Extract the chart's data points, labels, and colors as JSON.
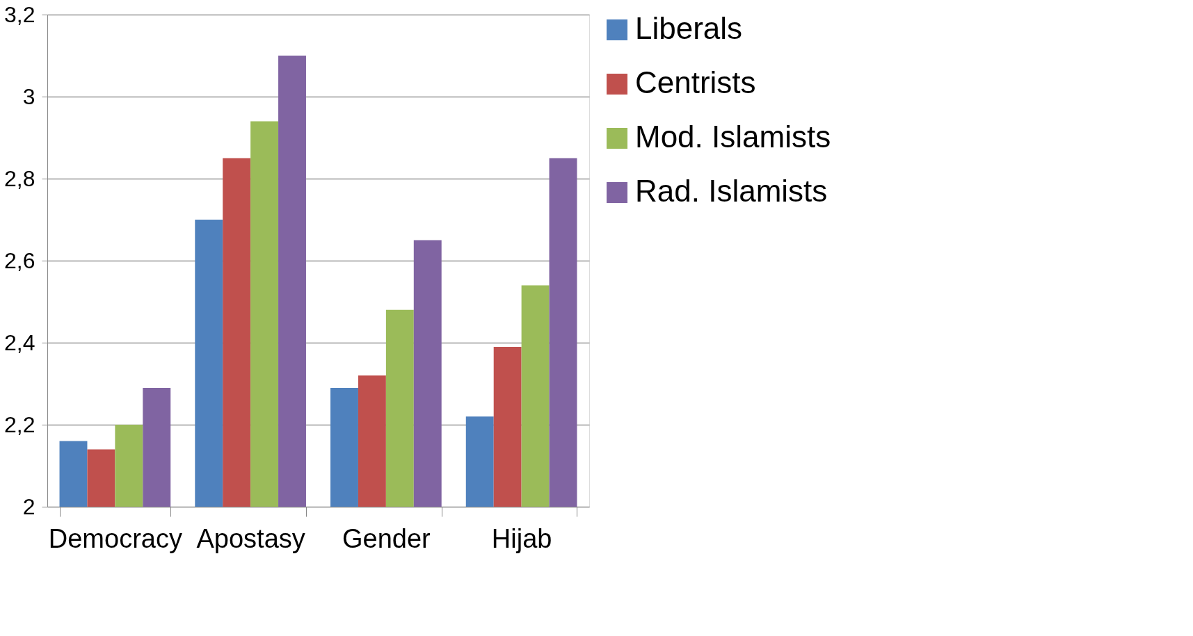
{
  "chart_data": {
    "type": "bar",
    "categories": [
      "Democracy",
      "Apostasy",
      "Gender",
      "Hijab"
    ],
    "series": [
      {
        "name": "Liberals",
        "color": "#4f81bd",
        "values": [
          2.16,
          2.7,
          2.29,
          2.22
        ]
      },
      {
        "name": "Centrists",
        "color": "#c0504d",
        "values": [
          2.14,
          2.85,
          2.32,
          2.39
        ]
      },
      {
        "name": "Mod. Islamists",
        "color": "#9bbb59",
        "values": [
          2.2,
          2.94,
          2.48,
          2.54
        ]
      },
      {
        "name": "Rad. Islamists",
        "color": "#8064a2",
        "values": [
          2.29,
          3.1,
          2.65,
          2.85
        ]
      }
    ],
    "ylim": [
      2,
      3.2
    ],
    "yticks": [
      2,
      {
        "value": 2.2,
        "label": "2,2"
      },
      {
        "value": 2.4,
        "label": "2,4"
      },
      {
        "value": 2.6,
        "label": "2,6"
      },
      {
        "value": 2.8,
        "label": "2,8"
      },
      3,
      {
        "value": 3.2,
        "label": "3,2"
      }
    ],
    "grid": "y",
    "legend": "right"
  }
}
